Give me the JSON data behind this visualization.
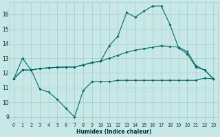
{
  "xlabel": "Humidex (Indice chaleur)",
  "xlim": [
    -0.5,
    23.5
  ],
  "ylim": [
    8.6,
    16.8
  ],
  "yticks": [
    9,
    10,
    11,
    12,
    13,
    14,
    15,
    16
  ],
  "xticks": [
    0,
    1,
    2,
    3,
    4,
    5,
    6,
    7,
    8,
    9,
    10,
    11,
    12,
    13,
    14,
    15,
    16,
    17,
    18,
    19,
    20,
    21,
    22,
    23
  ],
  "background_color": "#c8e8e8",
  "grid_color": "#a8d0d0",
  "line_color": "#006868",
  "series": [
    {
      "x": [
        0,
        1,
        2,
        3,
        4,
        5,
        6,
        7,
        8,
        9,
        10,
        11,
        12,
        13,
        14,
        15,
        16,
        17,
        18,
        19,
        20,
        21,
        22,
        23
      ],
      "y": [
        11.6,
        13.0,
        12.2,
        10.9,
        10.7,
        10.2,
        9.6,
        9.0,
        10.8,
        11.4,
        11.4,
        11.4,
        11.5,
        11.5,
        11.5,
        11.5,
        11.5,
        11.5,
        11.5,
        11.5,
        11.5,
        11.5,
        11.65,
        11.6
      ]
    },
    {
      "x": [
        0,
        1,
        2,
        3,
        4,
        5,
        6,
        7,
        8,
        9,
        10,
        11,
        12,
        13,
        14,
        15,
        16,
        17,
        18,
        19,
        20,
        21,
        22,
        23
      ],
      "y": [
        11.6,
        12.2,
        12.2,
        12.3,
        12.35,
        12.38,
        12.4,
        12.4,
        12.55,
        12.7,
        12.8,
        13.85,
        14.5,
        16.1,
        15.8,
        16.2,
        16.55,
        16.55,
        15.3,
        13.7,
        13.3,
        12.4,
        12.2,
        11.6
      ]
    },
    {
      "x": [
        0,
        1,
        2,
        3,
        4,
        5,
        6,
        7,
        8,
        9,
        10,
        11,
        12,
        13,
        14,
        15,
        16,
        17,
        18,
        19,
        20,
        21,
        22,
        23
      ],
      "y": [
        11.6,
        12.2,
        12.2,
        12.3,
        12.35,
        12.38,
        12.4,
        12.4,
        12.55,
        12.7,
        12.8,
        13.0,
        13.2,
        13.4,
        13.55,
        13.65,
        13.75,
        13.85,
        13.8,
        13.75,
        13.45,
        12.5,
        12.2,
        11.6
      ]
    }
  ]
}
